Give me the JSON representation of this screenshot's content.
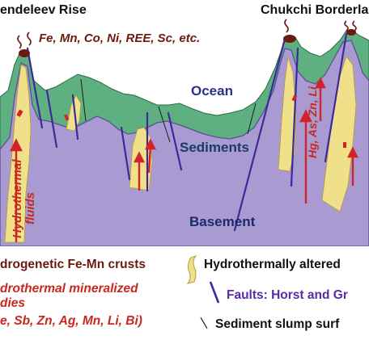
{
  "labels": {
    "mendeleev": "endeleev Rise",
    "chukchi": "Chukchi Borderla",
    "elements_top": "Fe, Mn, Co, Ni, REE, Sc, etc.",
    "ocean": "Ocean",
    "sediments": "Sediments",
    "basement": "Basement",
    "hydro_fluids_1": "Hydrothermal",
    "hydro_fluids_2": "fluids",
    "hg_elements": "Hg, As, Zn, Li"
  },
  "legend": {
    "hydrogenetic": "drogenetic Fe-Mn crusts",
    "hydro_altered": "Hydrothermally altered",
    "mineralized_1": "drothermal mineralized",
    "mineralized_2": "dies",
    "mineralized_3": "e, Sb, Zn, Ag, Mn, Li, Bi)",
    "faults": "Faults: Horst and Gr",
    "slump": "Sediment slump surf"
  },
  "colors": {
    "ocean": "#ffffff",
    "sediments": "#5fb081",
    "basement": "#a99bd1",
    "altered": "#f0e08a",
    "crust": "#6b1a0f",
    "arrow": "#d2232a",
    "fault": "#3c2a9a",
    "label_dark": "#6b1a0f",
    "label_red": "#c8281e",
    "label_blue": "#2b2f8a",
    "label_purple": "#5a2aa8"
  }
}
